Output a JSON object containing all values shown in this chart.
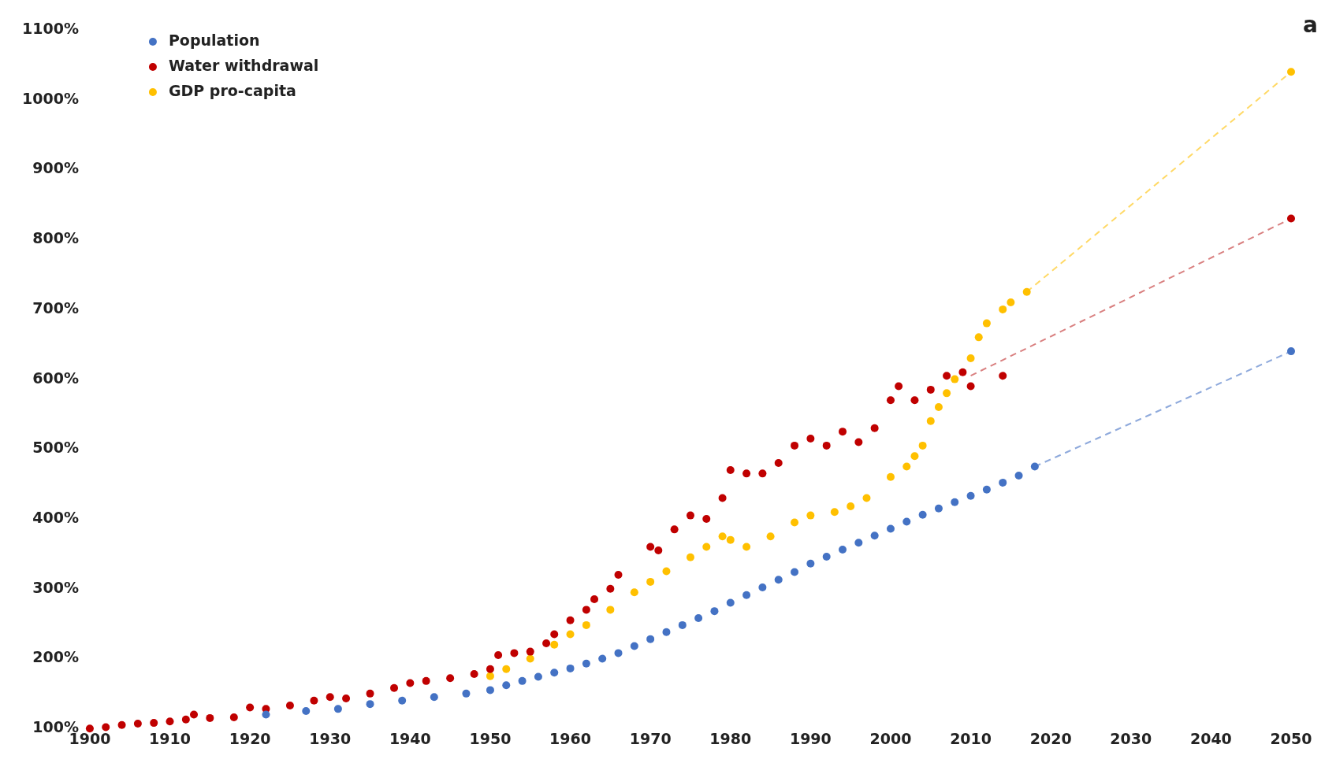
{
  "chart_data": {
    "type": "scatter",
    "annotations": [
      "a"
    ],
    "xlim": [
      1900,
      2050
    ],
    "ylim": [
      100,
      1100
    ],
    "xticks": [
      1900,
      1910,
      1920,
      1930,
      1940,
      1950,
      1960,
      1970,
      1980,
      1990,
      2000,
      2010,
      2020,
      2030,
      2040,
      2050
    ],
    "yticks": [
      {
        "value": 100,
        "label": "100%"
      },
      {
        "value": 200,
        "label": "200%"
      },
      {
        "value": 300,
        "label": "300%"
      },
      {
        "value": 400,
        "label": "400%"
      },
      {
        "value": 500,
        "label": "500%"
      },
      {
        "value": 600,
        "label": "600%"
      },
      {
        "value": 700,
        "label": "700%"
      },
      {
        "value": 800,
        "label": "800%"
      },
      {
        "value": 900,
        "label": "900%"
      },
      {
        "value": 1000,
        "label": "1000%"
      },
      {
        "value": 1100,
        "label": "1100%"
      }
    ],
    "grid": false,
    "legend": "top left",
    "marker": "circle",
    "series": [
      {
        "name": "Population",
        "color": "#4472c4",
        "x": [
          1922,
          1927,
          1931,
          1935,
          1939,
          1943,
          1947,
          1950,
          1952,
          1954,
          1956,
          1958,
          1960,
          1962,
          1964,
          1966,
          1968,
          1970,
          1972,
          1974,
          1976,
          1978,
          1980,
          1982,
          1984,
          1986,
          1988,
          1990,
          1992,
          1994,
          1996,
          1998,
          2000,
          2002,
          2004,
          2006,
          2008,
          2010,
          2012,
          2014,
          2016,
          2018,
          2050
        ],
        "values": [
          120,
          125,
          128,
          135,
          140,
          145,
          150,
          155,
          162,
          168,
          174,
          180,
          186,
          193,
          200,
          208,
          218,
          228,
          238,
          248,
          258,
          268,
          280,
          291,
          302,
          313,
          324,
          336,
          346,
          356,
          366,
          376,
          386,
          396,
          406,
          415,
          424,
          433,
          442,
          452,
          462,
          475,
          640
        ]
      },
      {
        "name": "Water withdrawal",
        "color": "#c00000",
        "x": [
          1900,
          1902,
          1904,
          1906,
          1908,
          1910,
          1912,
          1913,
          1915,
          1918,
          1920,
          1922,
          1925,
          1928,
          1930,
          1932,
          1935,
          1938,
          1940,
          1942,
          1945,
          1948,
          1950,
          1951,
          1953,
          1955,
          1957,
          1958,
          1960,
          1962,
          1963,
          1965,
          1966,
          1970,
          1971,
          1973,
          1975,
          1977,
          1979,
          1980,
          1982,
          1984,
          1986,
          1988,
          1990,
          1992,
          1994,
          1996,
          1998,
          2000,
          2001,
          2003,
          2005,
          2007,
          2009,
          2010,
          2014,
          2050
        ],
        "values": [
          100,
          102,
          105,
          107,
          108,
          110,
          113,
          120,
          115,
          116,
          130,
          128,
          133,
          140,
          145,
          143,
          150,
          158,
          165,
          168,
          172,
          178,
          185,
          205,
          208,
          210,
          222,
          235,
          255,
          270,
          285,
          300,
          320,
          360,
          355,
          385,
          405,
          400,
          430,
          470,
          465,
          465,
          480,
          505,
          515,
          505,
          525,
          510,
          530,
          570,
          590,
          570,
          585,
          605,
          610,
          590,
          605,
          830
        ]
      },
      {
        "name": "GDP pro-capita",
        "color": "#ffc000",
        "x": [
          1950,
          1952,
          1955,
          1958,
          1960,
          1962,
          1965,
          1968,
          1970,
          1972,
          1975,
          1977,
          1979,
          1980,
          1982,
          1985,
          1988,
          1990,
          1993,
          1995,
          1997,
          2000,
          2002,
          2003,
          2004,
          2005,
          2006,
          2007,
          2008,
          2010,
          2011,
          2012,
          2014,
          2015,
          2017,
          2050
        ],
        "values": [
          175,
          185,
          200,
          220,
          235,
          248,
          270,
          295,
          310,
          325,
          345,
          360,
          375,
          370,
          360,
          375,
          395,
          405,
          410,
          418,
          430,
          460,
          475,
          490,
          505,
          540,
          560,
          580,
          600,
          630,
          660,
          680,
          700,
          710,
          725,
          1040
        ]
      },
      {
        "type": "line",
        "line_style": "dashed",
        "marker": "none",
        "color": "#8faadc",
        "x": [
          2018,
          2050
        ],
        "values": [
          475,
          640
        ]
      },
      {
        "type": "line",
        "line_style": "dashed",
        "marker": "none",
        "color": "#d98080",
        "x": [
          2010,
          2050
        ],
        "values": [
          605,
          830
        ]
      },
      {
        "type": "line",
        "line_style": "dashed",
        "marker": "none",
        "color": "#ffd966",
        "x": [
          2017,
          2050
        ],
        "values": [
          725,
          1040
        ]
      }
    ]
  }
}
